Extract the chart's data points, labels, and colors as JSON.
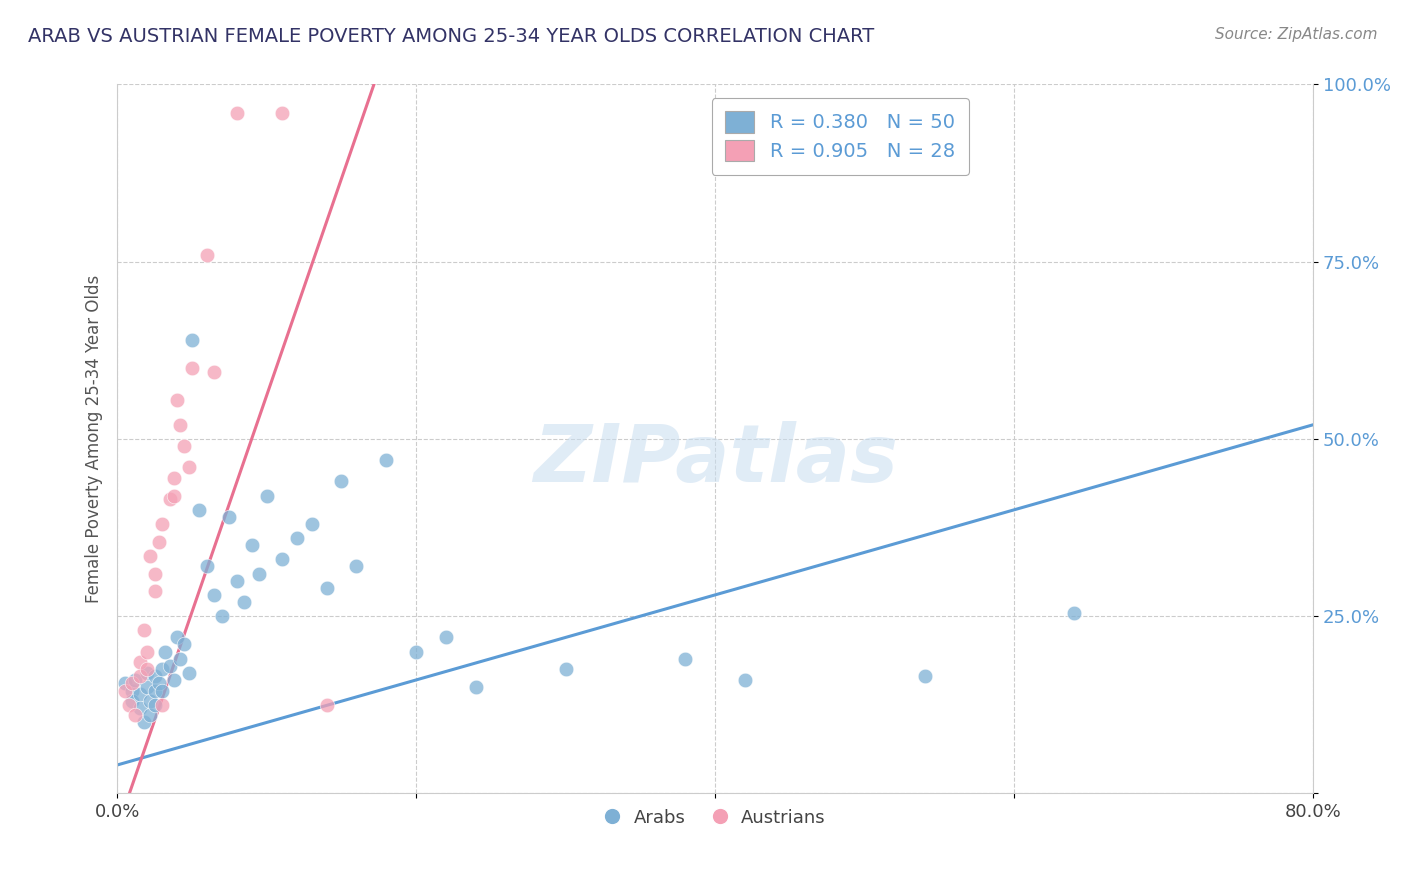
{
  "title": "ARAB VS AUSTRIAN FEMALE POVERTY AMONG 25-34 YEAR OLDS CORRELATION CHART",
  "source": "Source: ZipAtlas.com",
  "xlabel": "",
  "ylabel": "Female Poverty Among 25-34 Year Olds",
  "xlim": [
    0.0,
    0.8
  ],
  "ylim": [
    0.0,
    1.0
  ],
  "xtick_vals": [
    0.0,
    0.2,
    0.4,
    0.6,
    0.8
  ],
  "xtick_labels": [
    "0.0%",
    "",
    "",
    "",
    "80.0%"
  ],
  "ytick_vals": [
    0.0,
    0.25,
    0.5,
    0.75,
    1.0
  ],
  "ytick_labels": [
    "",
    "25.0%",
    "50.0%",
    "75.0%",
    "100.0%"
  ],
  "arab_color": "#7eb0d5",
  "austrian_color": "#f4a0b5",
  "arab_R": 0.38,
  "arab_N": 50,
  "austrian_R": 0.905,
  "austrian_N": 28,
  "arab_line_color": "#5b9bd5",
  "austrian_line_color": "#e87090",
  "arab_line": [
    [
      0.0,
      0.04
    ],
    [
      0.8,
      0.52
    ]
  ],
  "austrian_line": [
    [
      0.0,
      -0.05
    ],
    [
      0.175,
      1.02
    ]
  ],
  "watermark_text": "ZIPatlas",
  "background_color": "#ffffff",
  "grid_color": "#cccccc",
  "title_color": "#333366",
  "legend_color": "#5b9bd5",
  "arab_scatter": [
    [
      0.005,
      0.155
    ],
    [
      0.01,
      0.145
    ],
    [
      0.01,
      0.13
    ],
    [
      0.012,
      0.16
    ],
    [
      0.015,
      0.14
    ],
    [
      0.015,
      0.12
    ],
    [
      0.018,
      0.1
    ],
    [
      0.02,
      0.17
    ],
    [
      0.02,
      0.15
    ],
    [
      0.022,
      0.13
    ],
    [
      0.022,
      0.11
    ],
    [
      0.025,
      0.165
    ],
    [
      0.025,
      0.145
    ],
    [
      0.025,
      0.125
    ],
    [
      0.028,
      0.155
    ],
    [
      0.03,
      0.175
    ],
    [
      0.03,
      0.145
    ],
    [
      0.032,
      0.2
    ],
    [
      0.035,
      0.18
    ],
    [
      0.038,
      0.16
    ],
    [
      0.04,
      0.22
    ],
    [
      0.042,
      0.19
    ],
    [
      0.045,
      0.21
    ],
    [
      0.048,
      0.17
    ],
    [
      0.05,
      0.64
    ],
    [
      0.055,
      0.4
    ],
    [
      0.06,
      0.32
    ],
    [
      0.065,
      0.28
    ],
    [
      0.07,
      0.25
    ],
    [
      0.075,
      0.39
    ],
    [
      0.08,
      0.3
    ],
    [
      0.085,
      0.27
    ],
    [
      0.09,
      0.35
    ],
    [
      0.095,
      0.31
    ],
    [
      0.1,
      0.42
    ],
    [
      0.11,
      0.33
    ],
    [
      0.12,
      0.36
    ],
    [
      0.13,
      0.38
    ],
    [
      0.14,
      0.29
    ],
    [
      0.15,
      0.44
    ],
    [
      0.16,
      0.32
    ],
    [
      0.18,
      0.47
    ],
    [
      0.2,
      0.2
    ],
    [
      0.22,
      0.22
    ],
    [
      0.24,
      0.15
    ],
    [
      0.3,
      0.175
    ],
    [
      0.38,
      0.19
    ],
    [
      0.42,
      0.16
    ],
    [
      0.54,
      0.165
    ],
    [
      0.64,
      0.255
    ]
  ],
  "austrian_scatter": [
    [
      0.005,
      0.145
    ],
    [
      0.008,
      0.125
    ],
    [
      0.01,
      0.155
    ],
    [
      0.012,
      0.11
    ],
    [
      0.015,
      0.185
    ],
    [
      0.015,
      0.165
    ],
    [
      0.018,
      0.23
    ],
    [
      0.02,
      0.2
    ],
    [
      0.02,
      0.175
    ],
    [
      0.022,
      0.335
    ],
    [
      0.025,
      0.31
    ],
    [
      0.025,
      0.285
    ],
    [
      0.028,
      0.355
    ],
    [
      0.03,
      0.38
    ],
    [
      0.03,
      0.125
    ],
    [
      0.035,
      0.415
    ],
    [
      0.038,
      0.445
    ],
    [
      0.038,
      0.42
    ],
    [
      0.04,
      0.555
    ],
    [
      0.042,
      0.52
    ],
    [
      0.045,
      0.49
    ],
    [
      0.048,
      0.46
    ],
    [
      0.05,
      0.6
    ],
    [
      0.06,
      0.76
    ],
    [
      0.065,
      0.595
    ],
    [
      0.08,
      0.96
    ],
    [
      0.11,
      0.96
    ],
    [
      0.14,
      0.125
    ]
  ]
}
